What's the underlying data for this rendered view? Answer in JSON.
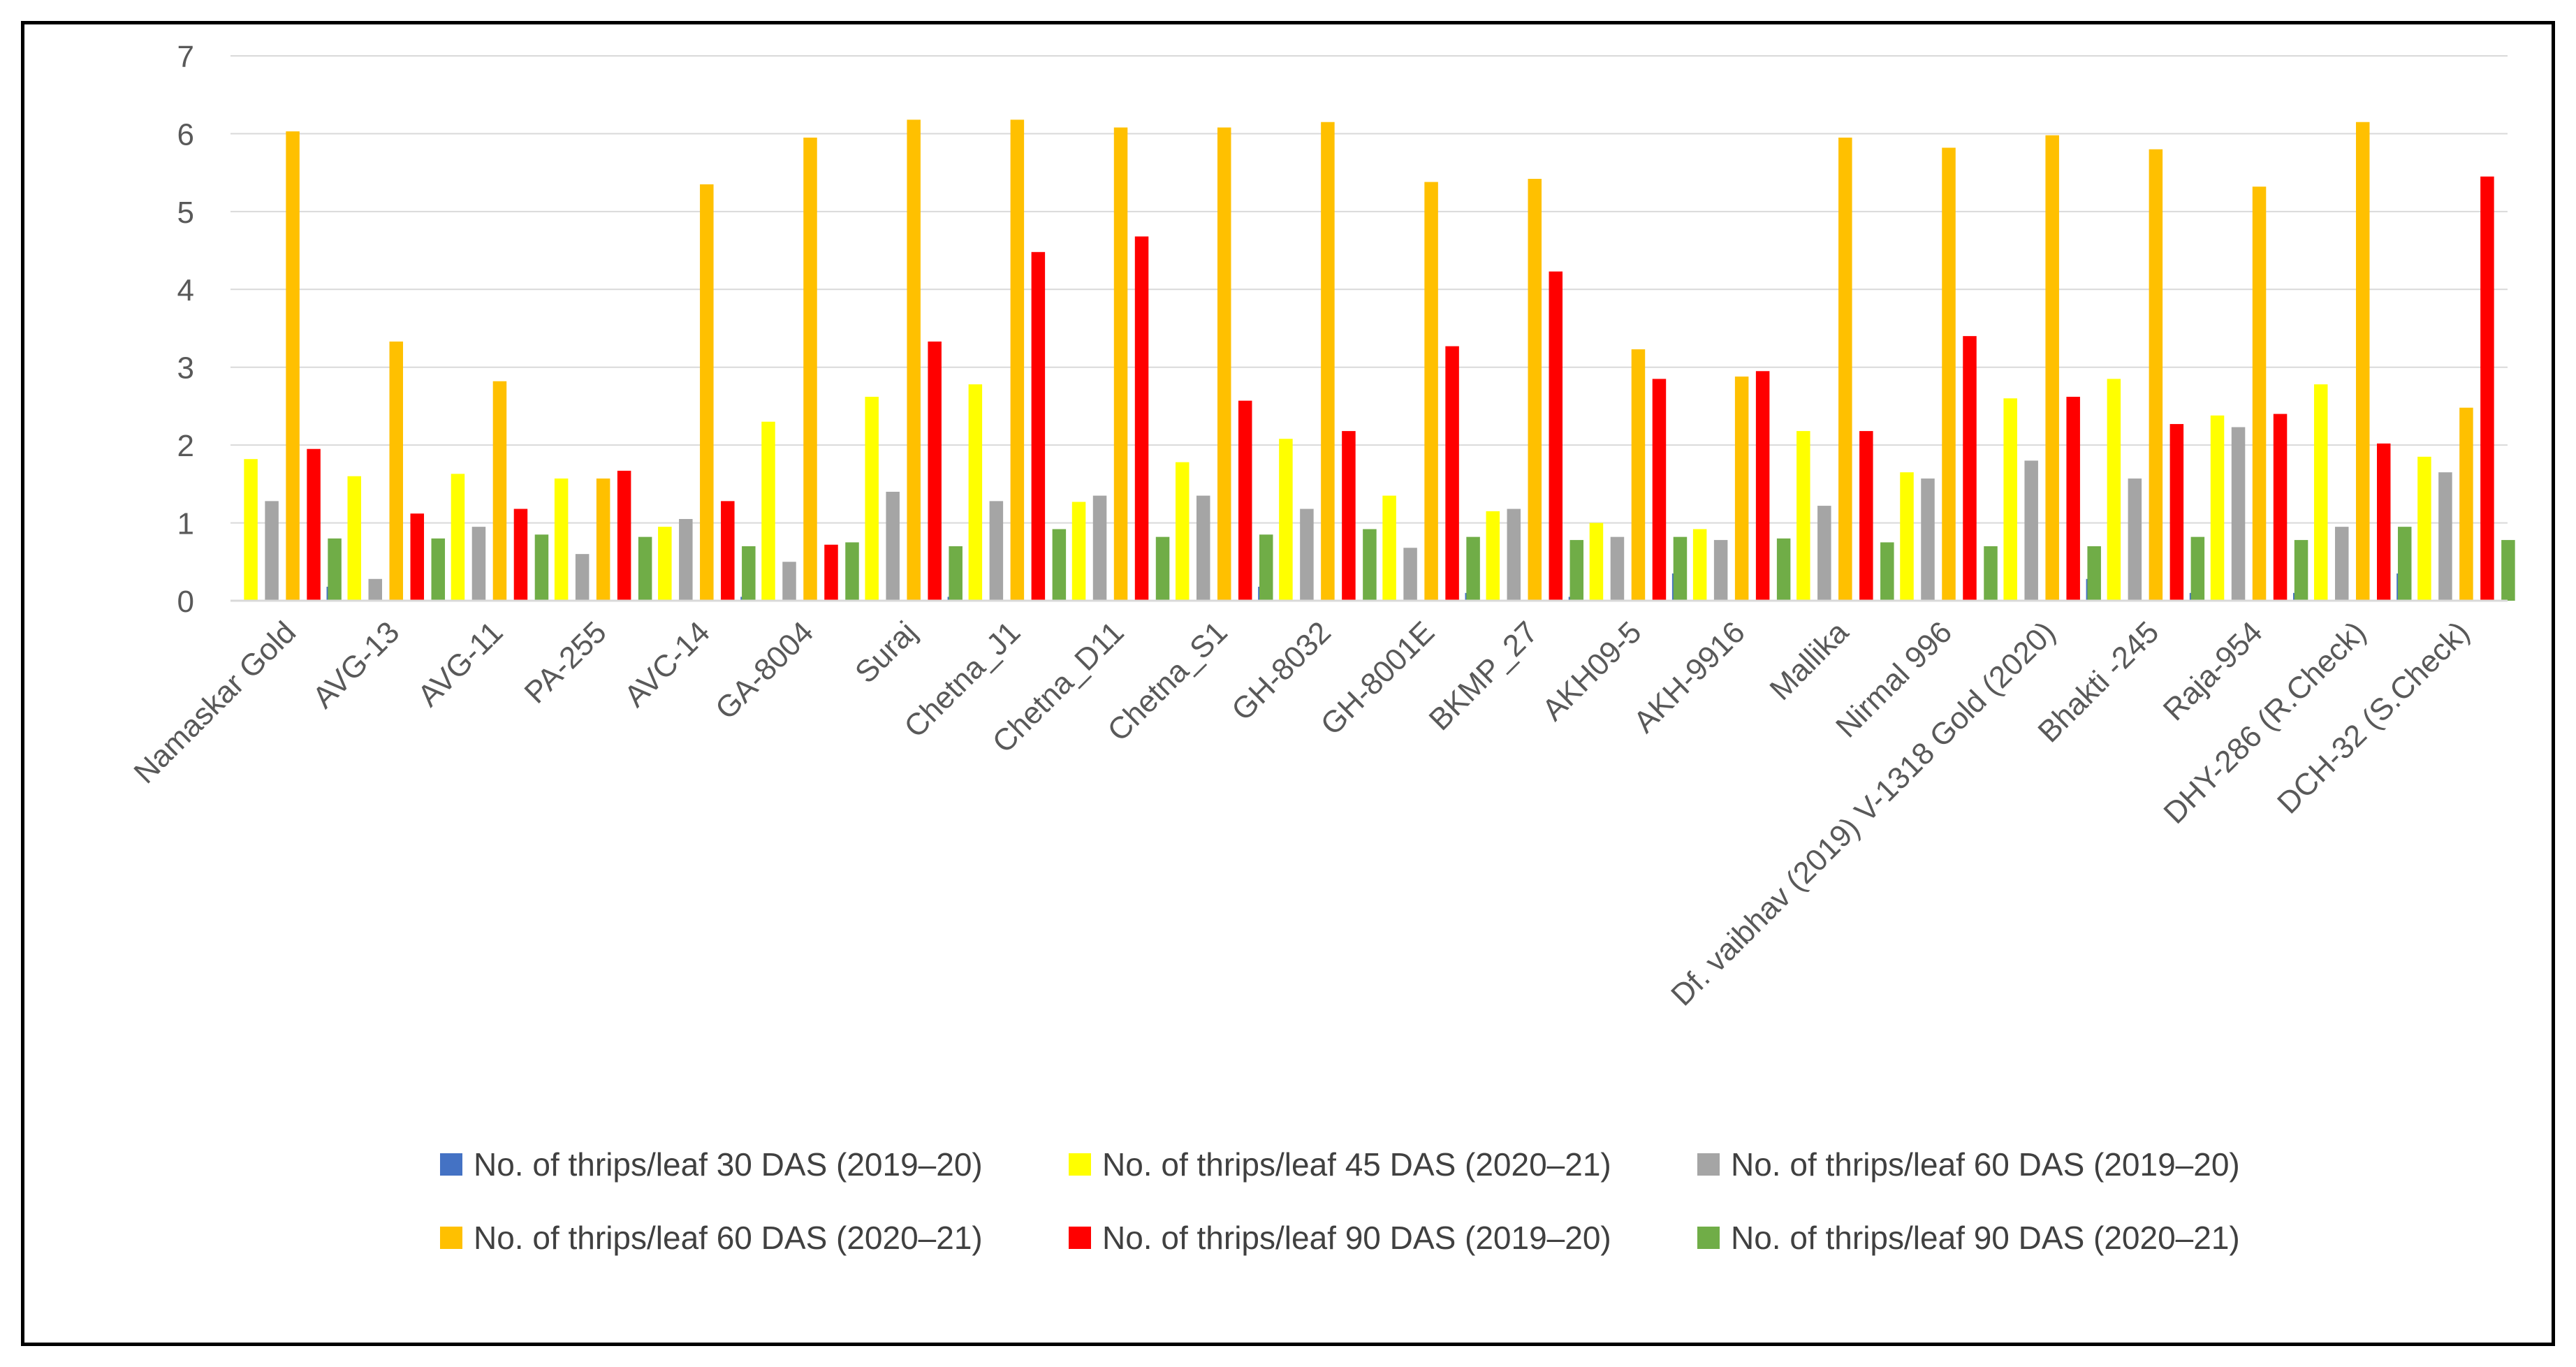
{
  "chart_data": {
    "type": "bar",
    "title": "",
    "xlabel": "",
    "ylabel": "",
    "ylim": [
      0,
      7
    ],
    "yticks": [
      "0",
      "1",
      "2",
      "3",
      "4",
      "5",
      "6",
      "7"
    ],
    "grid": true,
    "legend_position": "bottom",
    "categories": [
      "Namaskar Gold",
      "AVG-13",
      "AVG-11",
      "PA-255",
      "AVC-14",
      "GA-8004",
      "Suraj",
      "Chetna_J1",
      "Chetna_D11",
      "Chetna_S1",
      "GH-8032",
      "GH-8001E",
      "BKMP_27",
      "AKH09-5",
      "AKH-9916",
      "Mallika",
      "Nirmal 996",
      "Df. vaibhav (2019) V-1318 Gold (2020)",
      "Bhakti -245",
      "Raja-954",
      "DHY-286  (R.Check)",
      "DCH-32 (S.Check)"
    ],
    "series": [
      {
        "name": "No. of thrips/leaf 30 DAS (2019–20)",
        "color": "#4472C4",
        "values": [
          0,
          0.18,
          0,
          0,
          0,
          0.05,
          0,
          0.05,
          0,
          0,
          0.18,
          0,
          0.1,
          0.05,
          0.35,
          0,
          0,
          0,
          0.28,
          0.1,
          0.1,
          0.35
        ]
      },
      {
        "name": "No. of thrips/leaf 45 DAS (2020–21)",
        "color": "#FFFF00",
        "values": [
          1.82,
          1.6,
          1.63,
          1.57,
          0.95,
          2.3,
          2.62,
          2.78,
          1.27,
          1.78,
          2.08,
          1.35,
          1.15,
          1.0,
          0.92,
          2.18,
          1.65,
          2.6,
          2.85,
          2.38,
          2.78,
          1.85
        ]
      },
      {
        "name": "No. of thrips/leaf 60 DAS (2019–20)",
        "color": "#A5A5A5",
        "values": [
          1.28,
          0.28,
          0.95,
          0.6,
          1.05,
          0.5,
          1.4,
          1.28,
          1.35,
          1.35,
          1.18,
          0.68,
          1.18,
          0.82,
          0.78,
          1.22,
          1.57,
          1.8,
          1.57,
          2.23,
          0.95,
          1.65
        ]
      },
      {
        "name": "No. of thrips/leaf 60 DAS (2020–21)",
        "color": "#FFC000",
        "values": [
          6.03,
          3.33,
          2.82,
          1.57,
          5.35,
          5.95,
          6.18,
          6.18,
          6.08,
          6.08,
          6.15,
          5.38,
          5.42,
          3.23,
          2.88,
          5.95,
          5.82,
          5.98,
          5.8,
          5.32,
          6.15,
          2.48
        ]
      },
      {
        "name": "No. of thrips/leaf 90 DAS (2019–20)",
        "color": "#FF0000",
        "values": [
          1.95,
          1.12,
          1.18,
          1.67,
          1.28,
          0.72,
          3.33,
          4.48,
          4.68,
          2.57,
          2.18,
          3.27,
          4.23,
          2.85,
          2.95,
          2.18,
          3.4,
          2.62,
          2.27,
          2.4,
          2.02,
          5.45
        ]
      },
      {
        "name": "No. of thrips/leaf 90 DAS (2020–21)",
        "color": "#70AD47",
        "values": [
          0.8,
          0.8,
          0.85,
          0.82,
          0.7,
          0.75,
          0.7,
          0.92,
          0.82,
          0.85,
          0.92,
          0.82,
          0.78,
          0.82,
          0.8,
          0.75,
          0.7,
          0.7,
          0.82,
          0.78,
          0.95,
          0.78
        ]
      }
    ]
  }
}
